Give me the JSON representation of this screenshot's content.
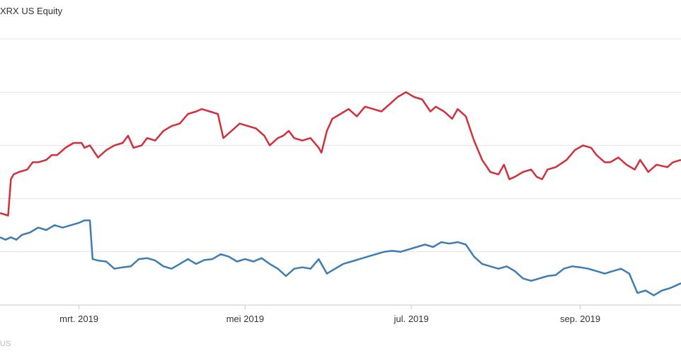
{
  "legend": {
    "title": "XRX US Equity"
  },
  "footer": {
    "text": "US"
  },
  "colors": {
    "red_series": "#d1303b",
    "blue_series": "#3d7db3",
    "grid": "#e3e3e3",
    "axis": "#c8c8c8"
  },
  "chart_data": {
    "type": "line",
    "title": "",
    "xlabel": "",
    "ylabel": "",
    "x_tick_labels": [
      "mrt. 2019",
      "mei 2019",
      "jul. 2019",
      "sep. 2019"
    ],
    "x_tick_dates": [
      "2019-03-01",
      "2019-05-01",
      "2019-07-01",
      "2019-09-01"
    ],
    "xlim": [
      "2019-01-31",
      "2019-10-08"
    ],
    "ylim": [
      0,
      5.5
    ],
    "grid": true,
    "series": [
      {
        "color": "#d1303b",
        "points": [
          [
            "2019-01-31",
            1.9
          ],
          [
            "2019-02-03",
            1.85
          ],
          [
            "2019-02-04",
            2.6
          ],
          [
            "2019-02-05",
            2.7
          ],
          [
            "2019-02-07",
            2.75
          ],
          [
            "2019-02-10",
            2.8
          ],
          [
            "2019-02-12",
            2.95
          ],
          [
            "2019-02-14",
            2.95
          ],
          [
            "2019-02-17",
            3.0
          ],
          [
            "2019-02-19",
            3.1
          ],
          [
            "2019-02-21",
            3.1
          ],
          [
            "2019-02-24",
            3.25
          ],
          [
            "2019-02-27",
            3.35
          ],
          [
            "2019-03-02",
            3.35
          ],
          [
            "2019-03-03",
            3.25
          ],
          [
            "2019-03-05",
            3.3
          ],
          [
            "2019-03-08",
            3.05
          ],
          [
            "2019-03-11",
            3.2
          ],
          [
            "2019-03-14",
            3.3
          ],
          [
            "2019-03-17",
            3.35
          ],
          [
            "2019-03-19",
            3.5
          ],
          [
            "2019-03-21",
            3.25
          ],
          [
            "2019-03-24",
            3.3
          ],
          [
            "2019-03-26",
            3.45
          ],
          [
            "2019-03-29",
            3.4
          ],
          [
            "2019-04-01",
            3.6
          ],
          [
            "2019-04-04",
            3.7
          ],
          [
            "2019-04-07",
            3.75
          ],
          [
            "2019-04-10",
            3.95
          ],
          [
            "2019-04-13",
            4.0
          ],
          [
            "2019-04-15",
            4.05
          ],
          [
            "2019-04-18",
            4.0
          ],
          [
            "2019-04-21",
            3.95
          ],
          [
            "2019-04-23",
            3.45
          ],
          [
            "2019-04-26",
            3.6
          ],
          [
            "2019-04-29",
            3.75
          ],
          [
            "2019-05-02",
            3.7
          ],
          [
            "2019-05-05",
            3.65
          ],
          [
            "2019-05-08",
            3.5
          ],
          [
            "2019-05-10",
            3.3
          ],
          [
            "2019-05-13",
            3.45
          ],
          [
            "2019-05-15",
            3.5
          ],
          [
            "2019-05-17",
            3.6
          ],
          [
            "2019-05-19",
            3.45
          ],
          [
            "2019-05-22",
            3.4
          ],
          [
            "2019-05-25",
            3.45
          ],
          [
            "2019-05-28",
            3.25
          ],
          [
            "2019-05-29",
            3.15
          ],
          [
            "2019-05-31",
            3.6
          ],
          [
            "2019-06-02",
            3.85
          ],
          [
            "2019-06-05",
            3.95
          ],
          [
            "2019-06-08",
            4.05
          ],
          [
            "2019-06-11",
            3.9
          ],
          [
            "2019-06-14",
            4.1
          ],
          [
            "2019-06-17",
            4.05
          ],
          [
            "2019-06-20",
            4.0
          ],
          [
            "2019-06-23",
            4.15
          ],
          [
            "2019-06-26",
            4.3
          ],
          [
            "2019-06-29",
            4.4
          ],
          [
            "2019-07-02",
            4.3
          ],
          [
            "2019-07-05",
            4.25
          ],
          [
            "2019-07-08",
            4.0
          ],
          [
            "2019-07-10",
            4.1
          ],
          [
            "2019-07-13",
            4.0
          ],
          [
            "2019-07-16",
            3.85
          ],
          [
            "2019-07-18",
            4.05
          ],
          [
            "2019-07-21",
            3.9
          ],
          [
            "2019-07-24",
            3.4
          ],
          [
            "2019-07-27",
            3.0
          ],
          [
            "2019-07-30",
            2.75
          ],
          [
            "2019-08-02",
            2.7
          ],
          [
            "2019-08-04",
            2.9
          ],
          [
            "2019-08-06",
            2.6
          ],
          [
            "2019-08-08",
            2.65
          ],
          [
            "2019-08-11",
            2.75
          ],
          [
            "2019-08-14",
            2.8
          ],
          [
            "2019-08-16",
            2.65
          ],
          [
            "2019-08-18",
            2.6
          ],
          [
            "2019-08-20",
            2.8
          ],
          [
            "2019-08-23",
            2.85
          ],
          [
            "2019-08-27",
            3.0
          ],
          [
            "2019-08-30",
            3.2
          ],
          [
            "2019-09-02",
            3.3
          ],
          [
            "2019-09-05",
            3.25
          ],
          [
            "2019-09-07",
            3.1
          ],
          [
            "2019-09-10",
            2.95
          ],
          [
            "2019-09-12",
            2.95
          ],
          [
            "2019-09-15",
            3.05
          ],
          [
            "2019-09-18",
            2.9
          ],
          [
            "2019-09-21",
            2.8
          ],
          [
            "2019-09-23",
            3.0
          ],
          [
            "2019-09-26",
            2.75
          ],
          [
            "2019-09-29",
            2.9
          ],
          [
            "2019-10-03",
            2.85
          ],
          [
            "2019-10-05",
            2.95
          ],
          [
            "2019-10-08",
            3.0
          ]
        ]
      },
      {
        "color": "#3d7db3",
        "points": [
          [
            "2019-01-31",
            1.4
          ],
          [
            "2019-02-02",
            1.35
          ],
          [
            "2019-02-04",
            1.4
          ],
          [
            "2019-02-06",
            1.35
          ],
          [
            "2019-02-08",
            1.45
          ],
          [
            "2019-02-11",
            1.5
          ],
          [
            "2019-02-14",
            1.6
          ],
          [
            "2019-02-17",
            1.55
          ],
          [
            "2019-02-20",
            1.65
          ],
          [
            "2019-02-23",
            1.6
          ],
          [
            "2019-02-26",
            1.65
          ],
          [
            "2019-03-01",
            1.7
          ],
          [
            "2019-03-03",
            1.75
          ],
          [
            "2019-03-05",
            1.75
          ],
          [
            "2019-03-06",
            0.95
          ],
          [
            "2019-03-08",
            0.92
          ],
          [
            "2019-03-11",
            0.9
          ],
          [
            "2019-03-14",
            0.75
          ],
          [
            "2019-03-17",
            0.78
          ],
          [
            "2019-03-20",
            0.8
          ],
          [
            "2019-03-23",
            0.95
          ],
          [
            "2019-03-26",
            0.97
          ],
          [
            "2019-03-29",
            0.92
          ],
          [
            "2019-04-01",
            0.8
          ],
          [
            "2019-04-04",
            0.75
          ],
          [
            "2019-04-07",
            0.85
          ],
          [
            "2019-04-10",
            0.95
          ],
          [
            "2019-04-13",
            0.85
          ],
          [
            "2019-04-16",
            0.93
          ],
          [
            "2019-04-19",
            0.95
          ],
          [
            "2019-04-22",
            1.05
          ],
          [
            "2019-04-25",
            1.0
          ],
          [
            "2019-04-28",
            0.9
          ],
          [
            "2019-05-01",
            0.95
          ],
          [
            "2019-05-04",
            0.9
          ],
          [
            "2019-05-07",
            0.97
          ],
          [
            "2019-05-10",
            0.85
          ],
          [
            "2019-05-13",
            0.75
          ],
          [
            "2019-05-16",
            0.6
          ],
          [
            "2019-05-19",
            0.75
          ],
          [
            "2019-05-22",
            0.78
          ],
          [
            "2019-05-25",
            0.75
          ],
          [
            "2019-05-28",
            0.95
          ],
          [
            "2019-05-31",
            0.65
          ],
          [
            "2019-06-03",
            0.75
          ],
          [
            "2019-06-06",
            0.85
          ],
          [
            "2019-06-09",
            0.9
          ],
          [
            "2019-06-12",
            0.95
          ],
          [
            "2019-06-15",
            1.0
          ],
          [
            "2019-06-18",
            1.05
          ],
          [
            "2019-06-21",
            1.1
          ],
          [
            "2019-06-24",
            1.12
          ],
          [
            "2019-06-27",
            1.1
          ],
          [
            "2019-06-30",
            1.15
          ],
          [
            "2019-07-03",
            1.2
          ],
          [
            "2019-07-06",
            1.25
          ],
          [
            "2019-07-09",
            1.2
          ],
          [
            "2019-07-12",
            1.3
          ],
          [
            "2019-07-15",
            1.27
          ],
          [
            "2019-07-18",
            1.3
          ],
          [
            "2019-07-21",
            1.25
          ],
          [
            "2019-07-24",
            1.0
          ],
          [
            "2019-07-27",
            0.85
          ],
          [
            "2019-07-30",
            0.8
          ],
          [
            "2019-08-02",
            0.75
          ],
          [
            "2019-08-05",
            0.8
          ],
          [
            "2019-08-08",
            0.7
          ],
          [
            "2019-08-11",
            0.55
          ],
          [
            "2019-08-14",
            0.5
          ],
          [
            "2019-08-17",
            0.55
          ],
          [
            "2019-08-20",
            0.6
          ],
          [
            "2019-08-23",
            0.62
          ],
          [
            "2019-08-26",
            0.75
          ],
          [
            "2019-08-29",
            0.8
          ],
          [
            "2019-09-01",
            0.78
          ],
          [
            "2019-09-04",
            0.75
          ],
          [
            "2019-09-07",
            0.7
          ],
          [
            "2019-09-10",
            0.65
          ],
          [
            "2019-09-13",
            0.7
          ],
          [
            "2019-09-16",
            0.75
          ],
          [
            "2019-09-19",
            0.65
          ],
          [
            "2019-09-22",
            0.25
          ],
          [
            "2019-09-25",
            0.3
          ],
          [
            "2019-09-28",
            0.2
          ],
          [
            "2019-10-01",
            0.3
          ],
          [
            "2019-10-04",
            0.35
          ],
          [
            "2019-10-08",
            0.45
          ]
        ]
      }
    ]
  }
}
